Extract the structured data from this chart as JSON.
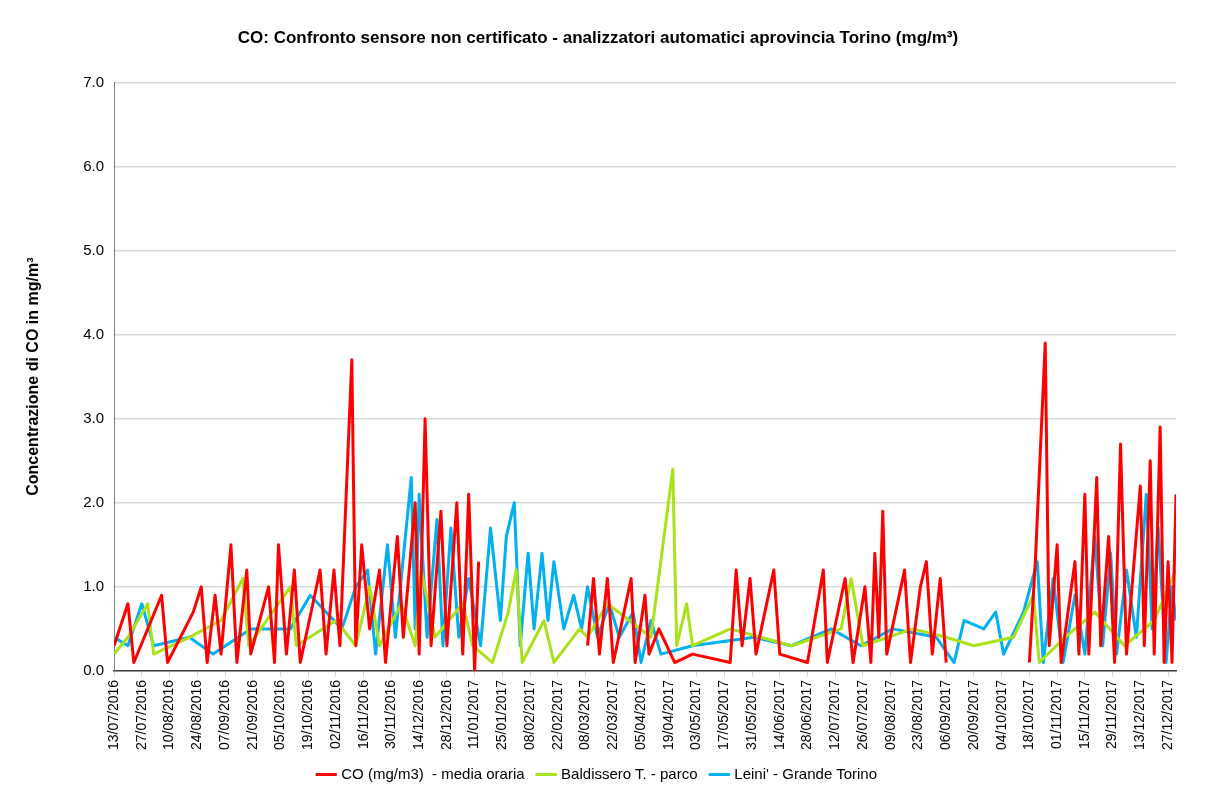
{
  "chart_data": {
    "type": "line",
    "title": "CO: Confronto sensore non certificato - analizzatori automatici aprovincia Torino (mg/m³)",
    "ylabel": "Concentrazione di CO in mg/m³",
    "xlim": [
      "2016-07-13",
      "2017-12-31"
    ],
    "xticks": [
      {
        "value": "2016-07-13",
        "label": "13/07/2016"
      },
      {
        "value": "2016-07-27",
        "label": "27/07/2016"
      },
      {
        "value": "2016-08-10",
        "label": "10/08/2016"
      },
      {
        "value": "2016-08-24",
        "label": "24/08/2016"
      },
      {
        "value": "2016-09-07",
        "label": "07/09/2016"
      },
      {
        "value": "2016-09-21",
        "label": "21/09/2016"
      },
      {
        "value": "2016-10-05",
        "label": "05/10/2016"
      },
      {
        "value": "2016-10-19",
        "label": "19/10/2016"
      },
      {
        "value": "2016-11-02",
        "label": "02/11/2016"
      },
      {
        "value": "2016-11-16",
        "label": "16/11/2016"
      },
      {
        "value": "2016-11-30",
        "label": "30/11/2016"
      },
      {
        "value": "2016-12-14",
        "label": "14/12/2016"
      },
      {
        "value": "2016-12-28",
        "label": "28/12/2016"
      },
      {
        "value": "2017-01-11",
        "label": "11/01/2017"
      },
      {
        "value": "2017-01-25",
        "label": "25/01/2017"
      },
      {
        "value": "2017-02-08",
        "label": "08/02/2017"
      },
      {
        "value": "2017-02-22",
        "label": "22/02/2017"
      },
      {
        "value": "2017-03-08",
        "label": "08/03/2017"
      },
      {
        "value": "2017-03-22",
        "label": "22/03/2017"
      },
      {
        "value": "2017-04-05",
        "label": "05/04/2017"
      },
      {
        "value": "2017-04-19",
        "label": "19/04/2017"
      },
      {
        "value": "2017-05-03",
        "label": "03/05/2017"
      },
      {
        "value": "2017-05-17",
        "label": "17/05/2017"
      },
      {
        "value": "2017-05-31",
        "label": "31/05/2017"
      },
      {
        "value": "2017-06-14",
        "label": "14/06/2017"
      },
      {
        "value": "2017-06-28",
        "label": "28/06/2017"
      },
      {
        "value": "2017-07-12",
        "label": "12/07/2017"
      },
      {
        "value": "2017-07-26",
        "label": "26/07/2017"
      },
      {
        "value": "2017-08-09",
        "label": "09/08/2017"
      },
      {
        "value": "2017-08-23",
        "label": "23/08/2017"
      },
      {
        "value": "2017-09-06",
        "label": "06/09/2017"
      },
      {
        "value": "2017-09-20",
        "label": "20/09/2017"
      },
      {
        "value": "2017-10-04",
        "label": "04/10/2017"
      },
      {
        "value": "2017-10-18",
        "label": "18/10/2017"
      },
      {
        "value": "2017-11-01",
        "label": "01/11/2017"
      },
      {
        "value": "2017-11-15",
        "label": "15/11/2017"
      },
      {
        "value": "2017-11-29",
        "label": "29/11/2017"
      },
      {
        "value": "2017-12-13",
        "label": "13/12/2017"
      },
      {
        "value": "2017-12-27",
        "label": "27/12/2017"
      }
    ],
    "ylim": [
      0,
      7
    ],
    "yticks": [
      {
        "value": 0,
        "label": "0.0"
      },
      {
        "value": 1,
        "label": "1.0"
      },
      {
        "value": 2,
        "label": "2.0"
      },
      {
        "value": 3,
        "label": "3.0"
      },
      {
        "value": 4,
        "label": "4.0"
      },
      {
        "value": 5,
        "label": "5.0"
      },
      {
        "value": 6,
        "label": "6.0"
      },
      {
        "value": 7,
        "label": "7.0"
      }
    ],
    "grid": "y",
    "legend": "bottom",
    "marker": "none",
    "line_style": "solid",
    "series": [
      {
        "name": "CO (mg/m3)  - media oraria",
        "color": "#ff0000",
        "x": [
          "2016-07-13",
          "2016-07-20",
          "2016-07-23",
          "2016-08-06",
          "2016-08-09",
          "2016-08-22",
          "2016-08-26",
          "2016-08-29",
          "2016-09-02",
          "2016-09-05",
          "2016-09-10",
          "2016-09-13",
          "2016-09-18",
          "2016-09-20",
          "2016-09-29",
          "2016-10-02",
          "2016-10-04",
          "2016-10-08",
          "2016-10-12",
          "2016-10-15",
          "2016-10-25",
          "2016-10-28",
          "2016-11-01",
          "2016-11-04",
          "2016-11-10",
          "2016-11-12",
          "2016-11-15",
          "2016-11-19",
          "2016-11-24",
          "2016-11-27",
          "2016-12-03",
          "2016-12-06",
          "2016-12-12",
          "2016-12-14",
          "2016-12-17",
          "2016-12-20",
          "2016-12-25",
          "2016-12-28",
          "2017-01-02",
          "2017-01-05",
          "2017-01-08",
          "2017-01-11",
          "2017-01-13",
          "2017-02-10",
          "2017-03-09",
          "2017-03-12",
          "2017-03-15",
          "2017-03-19",
          "2017-03-22",
          "2017-03-31",
          "2017-04-02",
          "2017-04-07",
          "2017-04-09",
          "2017-04-14",
          "2017-04-22",
          "2017-05-01",
          "2017-05-20",
          "2017-05-23",
          "2017-05-26",
          "2017-05-30",
          "2017-06-02",
          "2017-06-11",
          "2017-06-14",
          "2017-06-28",
          "2017-07-06",
          "2017-07-08",
          "2017-07-17",
          "2017-07-21",
          "2017-07-27",
          "2017-07-30",
          "2017-08-01",
          "2017-08-03",
          "2017-08-05",
          "2017-08-07",
          "2017-08-16",
          "2017-08-19",
          "2017-08-24",
          "2017-08-27",
          "2017-08-30",
          "2017-09-03",
          "2017-09-06",
          "2017-09-25",
          "2017-10-18",
          "2017-10-21",
          "2017-10-26",
          "2017-10-28",
          "2017-11-01",
          "2017-11-03",
          "2017-11-10",
          "2017-11-12",
          "2017-11-15",
          "2017-11-17",
          "2017-11-21",
          "2017-11-23",
          "2017-11-27",
          "2017-11-30",
          "2017-12-03",
          "2017-12-06",
          "2017-12-13",
          "2017-12-15",
          "2017-12-18",
          "2017-12-20",
          "2017-12-23",
          "2017-12-25",
          "2017-12-27",
          "2017-12-29",
          "2017-12-31"
        ],
        "values": [
          0.3,
          0.8,
          0.1,
          0.9,
          0.1,
          0.7,
          1.0,
          0.1,
          0.9,
          0.2,
          1.5,
          0.1,
          1.2,
          0.2,
          1.0,
          0.1,
          1.5,
          0.2,
          1.2,
          0.1,
          1.2,
          0.2,
          1.2,
          0.3,
          3.7,
          0.3,
          1.5,
          0.5,
          1.2,
          0.1,
          1.6,
          0.4,
          2.0,
          0.2,
          3.0,
          0.3,
          1.9,
          0.3,
          2.0,
          0.2,
          2.1,
          0,
          1.3,
          null,
          0.3,
          1.1,
          0.2,
          1.1,
          0.1,
          1.1,
          0.1,
          0.9,
          0.2,
          0.5,
          0.1,
          0.2,
          0.1,
          1.2,
          0.3,
          1.1,
          0.2,
          1.2,
          0.2,
          0.1,
          1.2,
          0.1,
          1.1,
          0.1,
          1.0,
          0.1,
          1.4,
          0.4,
          1.9,
          0.2,
          1.2,
          0.1,
          1.0,
          1.3,
          0.2,
          1.1,
          0.1,
          null,
          0.1,
          1.3,
          3.9,
          0.3,
          1.5,
          0.1,
          1.3,
          0.2,
          2.1,
          0.2,
          2.3,
          0.3,
          1.6,
          0.1,
          2.7,
          0.2,
          2.2,
          0.3,
          2.5,
          0.2,
          2.9,
          0.1,
          1.3,
          0.1,
          2.1
        ]
      },
      {
        "name": "Baldissero T. - parco",
        "color": "#a9e21b",
        "x": [
          "2016-07-13",
          "2016-07-20",
          "2016-07-30",
          "2016-08-02",
          "2016-08-20",
          "2016-09-05",
          "2016-09-16",
          "2016-09-19",
          "2016-10-10",
          "2016-10-13",
          "2016-11-02",
          "2016-11-12",
          "2016-11-19",
          "2016-11-24",
          "2016-12-05",
          "2016-12-12",
          "2016-12-15",
          "2016-12-22",
          "2017-01-05",
          "2017-01-10",
          "2017-01-20",
          "2017-01-28",
          "2017-02-01",
          "2017-02-04",
          "2017-02-15",
          "2017-02-20",
          "2017-03-05",
          "2017-03-09",
          "2017-03-19",
          "2017-04-10",
          "2017-04-21",
          "2017-04-23",
          "2017-04-28",
          "2017-05-01",
          "2017-05-20",
          "2017-06-20",
          "2017-07-15",
          "2017-07-20",
          "2017-07-26",
          "2017-08-20",
          "2017-09-06",
          "2017-09-20",
          "2017-10-10",
          "2017-10-20",
          "2017-10-23",
          "2017-11-05",
          "2017-11-20",
          "2017-12-05",
          "2017-12-20",
          "2017-12-31"
        ],
        "values": [
          0.2,
          0.4,
          0.8,
          0.2,
          0.4,
          0.6,
          1.1,
          0.3,
          1.0,
          0.3,
          0.6,
          0.3,
          1.0,
          0.3,
          0.8,
          0.3,
          1.2,
          0.4,
          0.8,
          0.3,
          0.1,
          0.7,
          1.2,
          0.1,
          0.6,
          0.1,
          0.5,
          0.4,
          0.8,
          0.4,
          2.4,
          0.3,
          0.8,
          0.3,
          0.5,
          0.3,
          0.5,
          1.1,
          0.3,
          0.5,
          0.4,
          0.3,
          0.4,
          0.9,
          0.1,
          0.4,
          0.7,
          0.3,
          0.6,
          1.2
        ]
      },
      {
        "name": "Leini' - Grande Torino",
        "color": "#00b0f0",
        "x": [
          "2016-07-13",
          "2016-07-20",
          "2016-07-27",
          "2016-08-02",
          "2016-08-20",
          "2016-09-01",
          "2016-09-20",
          "2016-10-10",
          "2016-10-20",
          "2016-11-05",
          "2016-11-12",
          "2016-11-18",
          "2016-11-22",
          "2016-11-28",
          "2016-12-02",
          "2016-12-10",
          "2016-12-12",
          "2016-12-14",
          "2016-12-18",
          "2016-12-23",
          "2016-12-26",
          "2016-12-30",
          "2017-01-03",
          "2017-01-08",
          "2017-01-14",
          "2017-01-19",
          "2017-01-24",
          "2017-01-27",
          "2017-01-31",
          "2017-02-03",
          "2017-02-07",
          "2017-02-10",
          "2017-02-14",
          "2017-02-17",
          "2017-02-20",
          "2017-02-25",
          "2017-03-02",
          "2017-03-06",
          "2017-03-09",
          "2017-03-14",
          "2017-03-20",
          "2017-03-25",
          "2017-04-01",
          "2017-04-05",
          "2017-04-10",
          "2017-04-15",
          "2017-05-01",
          "2017-06-01",
          "2017-06-20",
          "2017-07-10",
          "2017-07-25",
          "2017-08-10",
          "2017-09-01",
          "2017-09-10",
          "2017-09-15",
          "2017-09-25",
          "2017-10-01",
          "2017-10-05",
          "2017-10-15",
          "2017-10-22",
          "2017-10-25",
          "2017-10-30",
          "2017-11-04",
          "2017-11-10",
          "2017-11-15",
          "2017-11-20",
          "2017-11-24",
          "2017-11-28",
          "2017-12-01",
          "2017-12-06",
          "2017-12-11",
          "2017-12-16",
          "2017-12-19",
          "2017-12-22",
          "2017-12-26",
          "2017-12-29",
          "2017-12-31"
        ],
        "values": [
          0.4,
          0.3,
          0.8,
          0.3,
          0.4,
          0.2,
          0.5,
          0.5,
          0.9,
          0.5,
          1.0,
          1.2,
          0.2,
          1.5,
          0.4,
          2.3,
          0.5,
          2.1,
          0.4,
          1.8,
          0.3,
          1.7,
          0.4,
          1.1,
          0.3,
          1.7,
          0.6,
          1.6,
          2.0,
          0.3,
          1.4,
          0.5,
          1.4,
          0.6,
          1.3,
          0.5,
          0.9,
          0.5,
          1.0,
          0.4,
          0.8,
          0.4,
          0.7,
          0.1,
          0.6,
          0.2,
          0.3,
          0.4,
          0.3,
          0.5,
          0.3,
          0.5,
          0.4,
          0.1,
          0.6,
          0.5,
          0.7,
          0.2,
          0.7,
          1.3,
          0.1,
          1.1,
          0.1,
          0.9,
          0.2,
          1.6,
          0.3,
          1.4,
          0.2,
          1.2,
          0.4,
          2.1,
          0.5,
          1.7,
          0.1,
          1.0,
          0.6
        ]
      }
    ]
  }
}
